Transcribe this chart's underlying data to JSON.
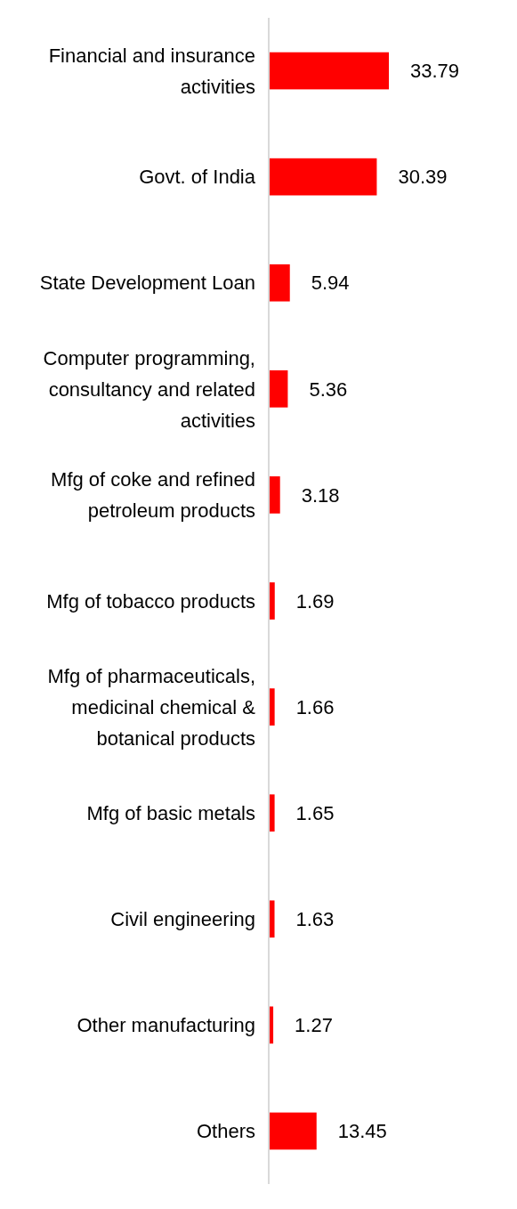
{
  "chart_data": {
    "type": "bar",
    "orientation": "horizontal",
    "categories": [
      "Financial and insurance activities",
      "Govt. of India",
      "State Development Loan",
      "Computer programming, consultancy and related activities",
      "Mfg of coke and refined petroleum products",
      "Mfg of tobacco products",
      "Mfg of pharmaceuticals, medicinal chemical & botanical products",
      "Mfg of basic metals",
      "Civil engineering",
      "Other manufacturing",
      "Others"
    ],
    "values": [
      33.79,
      30.39,
      5.94,
      5.36,
      3.18,
      1.69,
      1.66,
      1.65,
      1.63,
      1.27,
      13.45
    ],
    "color": "#ff0000",
    "data_labels": true
  }
}
